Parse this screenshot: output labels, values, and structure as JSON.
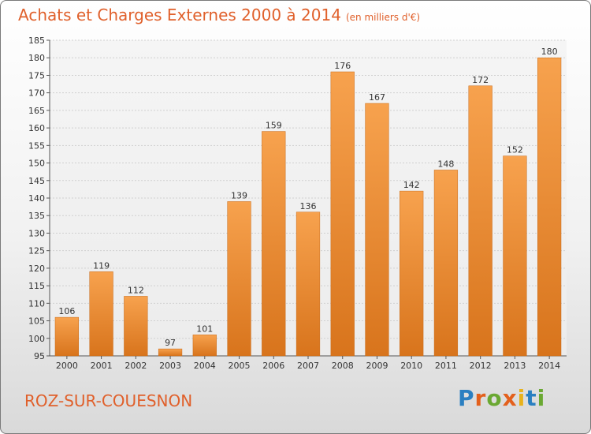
{
  "header": {
    "title": "Achats et Charges Externes 2000 à 2014",
    "unit": "(en milliers d'€)"
  },
  "footer": {
    "commune": "ROZ-SUR-COUESNON",
    "logo_text": "Proxiti"
  },
  "colors": {
    "bar_light": "#f7a24e",
    "bar_dark": "#d8741c",
    "title": "#e0602b",
    "grid": "#d0d0d0"
  },
  "chart_data": {
    "type": "bar",
    "title": "Achats et Charges Externes 2000 à 2014",
    "subtitle": "(en milliers d'€)",
    "xlabel": "",
    "ylabel": "",
    "categories": [
      "2000",
      "2001",
      "2002",
      "2003",
      "2004",
      "2005",
      "2006",
      "2007",
      "2008",
      "2009",
      "2010",
      "2011",
      "2012",
      "2013",
      "2014"
    ],
    "values": [
      106,
      119,
      112,
      97,
      101,
      139,
      159,
      136,
      176,
      167,
      142,
      148,
      172,
      152,
      180
    ],
    "ylim": [
      95,
      185
    ],
    "yticks": [
      95,
      100,
      105,
      110,
      115,
      120,
      125,
      130,
      135,
      140,
      145,
      150,
      155,
      160,
      165,
      170,
      175,
      180,
      185
    ],
    "grid": true,
    "legend": "none"
  }
}
